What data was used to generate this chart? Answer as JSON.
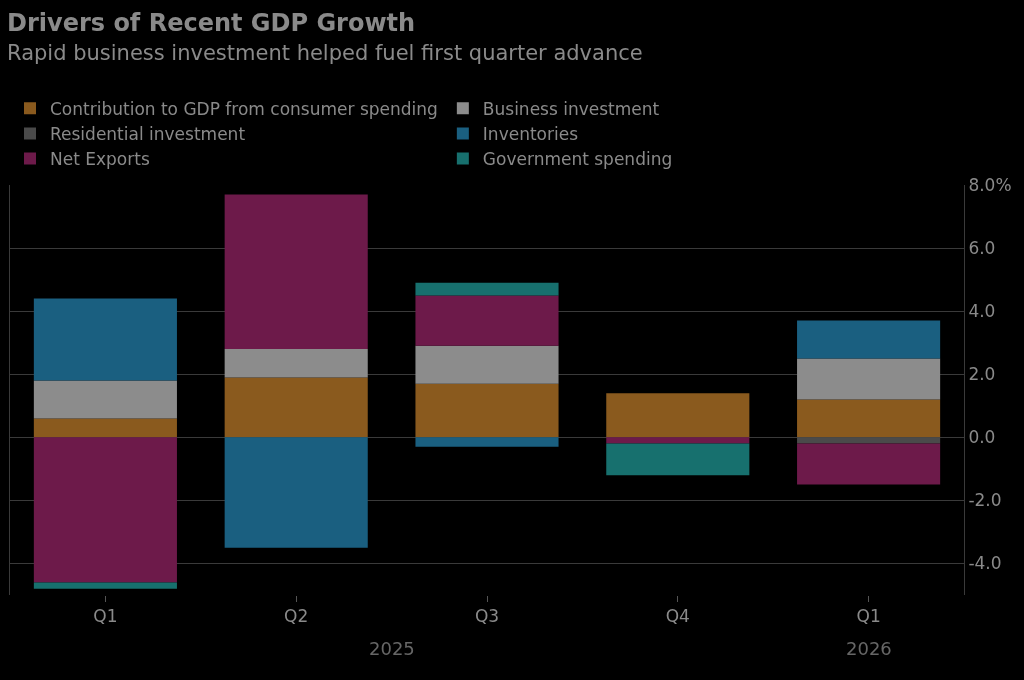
{
  "chart_data": {
    "type": "bar",
    "title": "Drivers of Recent GDP Growth",
    "subtitle": "Rapid business investment helped fuel first quarter advance",
    "categories": [
      "Q1",
      "Q2",
      "Q3",
      "Q4",
      "Q1"
    ],
    "series": [
      {
        "name": "Contribution to GDP from consumer spending",
        "color": "#8a5a1e",
        "values": [
          0.6,
          1.9,
          1.7,
          1.4,
          1.2
        ]
      },
      {
        "name": "Business investment",
        "color": "#8c8c8c",
        "values": [
          1.2,
          0.9,
          1.2,
          null,
          1.3
        ]
      },
      {
        "name": "Residential investment",
        "color": "#4a4a4a",
        "values": [
          null,
          null,
          null,
          null,
          -0.2
        ]
      },
      {
        "name": "Inventories",
        "color": "#1a5f80",
        "values": [
          2.6,
          -3.5,
          -0.3,
          null,
          1.2
        ]
      },
      {
        "name": "Net Exports",
        "color": "#6d1a4a",
        "values": [
          -4.6,
          4.9,
          1.6,
          -0.2,
          -1.3
        ]
      },
      {
        "name": "Government spending",
        "color": "#17706e",
        "values": [
          -0.2,
          null,
          0.4,
          -1.0,
          null
        ]
      }
    ],
    "stacked": true,
    "ylim": [
      -5,
      8
    ],
    "yticks": [
      {
        "value": 8,
        "label": "8.0%"
      },
      {
        "value": 6,
        "label": "6.0"
      },
      {
        "value": 4,
        "label": "4.0"
      },
      {
        "value": 2,
        "label": "2.0"
      },
      {
        "value": 0,
        "label": "0.0"
      },
      {
        "value": -2,
        "label": "-2.0"
      },
      {
        "value": -4,
        "label": "-4.0"
      }
    ],
    "grid": "y",
    "legend": "top",
    "annotations": [
      "2025",
      "2026"
    ]
  }
}
